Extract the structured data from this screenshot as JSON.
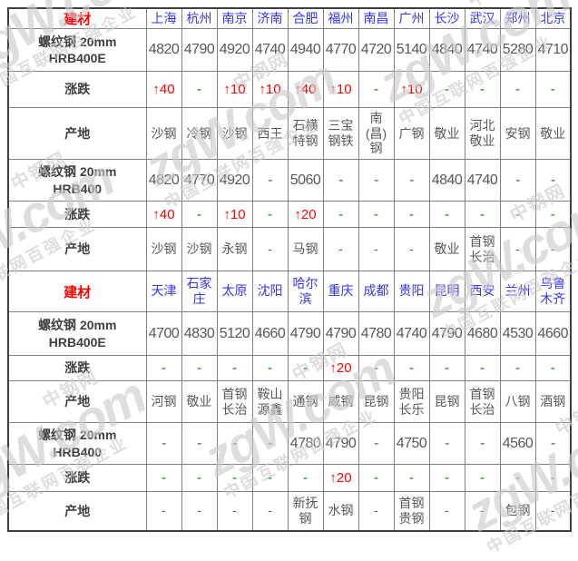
{
  "watermark": {
    "brand": "中钢网",
    "logo": "zgW.com",
    "slogan": "中国互联网百强企业"
  },
  "colors": {
    "header_label": "#fe0000",
    "city": "#3636e8",
    "value": "#595959",
    "up": "#fe0000",
    "flat_dash": "#007d00",
    "border": "#828282"
  },
  "sections": [
    {
      "corner_label": "建材",
      "cities": [
        "上海",
        "杭州",
        "南京",
        "济南",
        "合肥",
        "福州",
        "南昌",
        "广州",
        "长沙",
        "武汉",
        "郑州",
        "北京"
      ],
      "rows": [
        {
          "id": "hrb400e-price-1",
          "label": "螺纹钢 20mm\nHRB400E",
          "kind": "price",
          "values": [
            "4820",
            "4790",
            "4920",
            "4740",
            "4940",
            "4770",
            "4720",
            "5140",
            "4840",
            "4740",
            "5280",
            "4710"
          ]
        },
        {
          "id": "hrb400e-change-1",
          "label": "涨跌",
          "kind": "change",
          "values": [
            "↑40",
            "-",
            "↑10",
            "↑10",
            "↑40",
            "↑10",
            "-",
            "↑10",
            "-",
            "-",
            "-",
            "-"
          ]
        },
        {
          "id": "hrb400e-origin-1",
          "label": "产地",
          "kind": "origin",
          "values": [
            "沙钢",
            "冷钢",
            "沙钢",
            "西王",
            "石横特钢",
            "三宝钢铁",
            "南(昌)钢",
            "广钢",
            "敬业",
            "河北敬业",
            "安钢",
            "敬业"
          ]
        },
        {
          "id": "hrb400-price-1",
          "label": "螺纹钢 20mm\nHRB400",
          "kind": "price",
          "values": [
            "4820",
            "4770",
            "4920",
            "-",
            "5060",
            "-",
            "-",
            "-",
            "4840",
            "4740",
            "-",
            "-"
          ]
        },
        {
          "id": "hrb400-change-1",
          "label": "涨跌",
          "kind": "change",
          "values": [
            "↑40",
            "-",
            "↑10",
            "-",
            "↑20",
            "-",
            "-",
            "-",
            "-",
            "-",
            "-",
            "-"
          ]
        },
        {
          "id": "hrb400-origin-1",
          "label": "产地",
          "kind": "origin",
          "values": [
            "沙钢",
            "沙钢",
            "永钢",
            "-",
            "马钢",
            "-",
            "-",
            "-",
            "敬业",
            "首钢长治",
            "-",
            "-"
          ]
        }
      ]
    },
    {
      "corner_label": "建材",
      "cities": [
        "天津",
        "石家庄",
        "太原",
        "沈阳",
        "哈尔滨",
        "重庆",
        "成都",
        "贵阳",
        "昆明",
        "西安",
        "兰州",
        "乌鲁木齐"
      ],
      "rows": [
        {
          "id": "hrb400e-price-2",
          "label": "螺纹钢 20mm\nHRB400E",
          "kind": "price",
          "values": [
            "4700",
            "4830",
            "5120",
            "4660",
            "4790",
            "4790",
            "4780",
            "4740",
            "4790",
            "4680",
            "4530",
            "4660"
          ]
        },
        {
          "id": "hrb400e-change-2",
          "label": "涨跌",
          "kind": "change",
          "values": [
            "-",
            "-",
            "-",
            "-",
            "-",
            "↑20",
            "-",
            "-",
            "-",
            "-",
            "-",
            "-"
          ]
        },
        {
          "id": "hrb400e-origin-2",
          "label": "产地",
          "kind": "origin",
          "values": [
            "河钢",
            "敬业",
            "首钢长治",
            "鞍山源鑫",
            "通钢",
            "威钢",
            "昆钢",
            "贵阳长乐",
            "昆钢",
            "首钢长治",
            "八钢",
            "酒钢"
          ]
        },
        {
          "id": "hrb400-price-2",
          "label": "螺纹钢 20mm\nHRB400",
          "kind": "price",
          "values": [
            "-",
            "-",
            "-",
            "-",
            "4780",
            "4790",
            "-",
            "4750",
            "-",
            "-",
            "4560",
            "-"
          ]
        },
        {
          "id": "hrb400-change-2",
          "label": "涨跌",
          "kind": "change",
          "values": [
            "-",
            "-",
            "-",
            "-",
            "-",
            "↑20",
            "-",
            "-",
            "-",
            "-",
            "-",
            "-"
          ]
        },
        {
          "id": "hrb400-origin-2",
          "label": "产地",
          "kind": "origin",
          "values": [
            "-",
            "-",
            "-",
            "-",
            "新抚钢",
            "水钢",
            "-",
            "首钢贵钢",
            "-",
            "-",
            "包钢",
            "-"
          ]
        }
      ]
    }
  ]
}
